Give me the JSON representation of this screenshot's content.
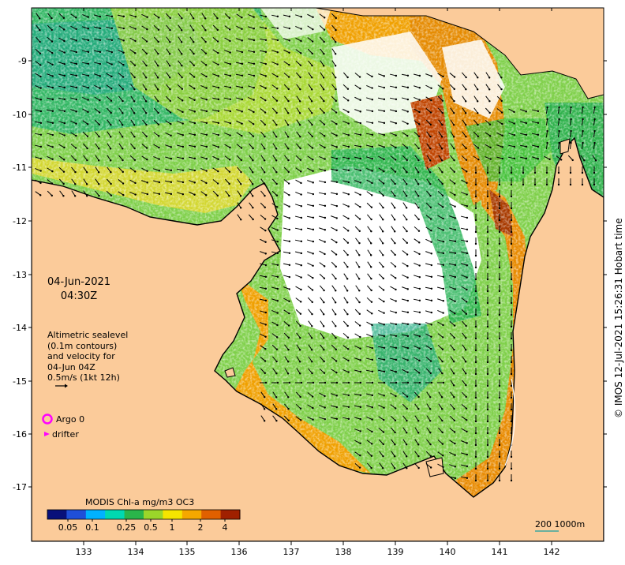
{
  "map": {
    "lon_ticks": [
      "133",
      "134",
      "135",
      "136",
      "137",
      "138",
      "139",
      "140",
      "141",
      "142"
    ],
    "lat_ticks": [
      "-9",
      "-10",
      "-11",
      "-12",
      "-13",
      "-14",
      "-15",
      "-16",
      "-17"
    ],
    "colors": {
      "land": "#fbcb9a",
      "coast": "#000000",
      "nodata": "#ffffff"
    }
  },
  "overlay": {
    "date": "04-Jun-2021",
    "time": "04:30Z",
    "velocity_lines": [
      "Altimetric sealevel",
      "(0.1m contours)",
      "and velocity for",
      "04-Jun 04Z",
      "0.5m/s (1kt 12h)"
    ],
    "argo_label": "Argo 0",
    "drifter_label": "drifter",
    "scale_label": "200  1000m"
  },
  "colorbar": {
    "title": "MODIS Chl-a mg/m3 OC3",
    "labels": [
      "0.05",
      "0.1",
      "0.25",
      "0.5",
      "1",
      "2",
      "4"
    ],
    "colors": [
      "#08107a",
      "#1f4fd8",
      "#00b2ff",
      "#00d9b0",
      "#2ab54a",
      "#9bd62a",
      "#f5e400",
      "#f5a800",
      "#e06000",
      "#a02000"
    ]
  },
  "credit": "© IMOS 12-Jul-2021 15:26:31 Hobart time"
}
